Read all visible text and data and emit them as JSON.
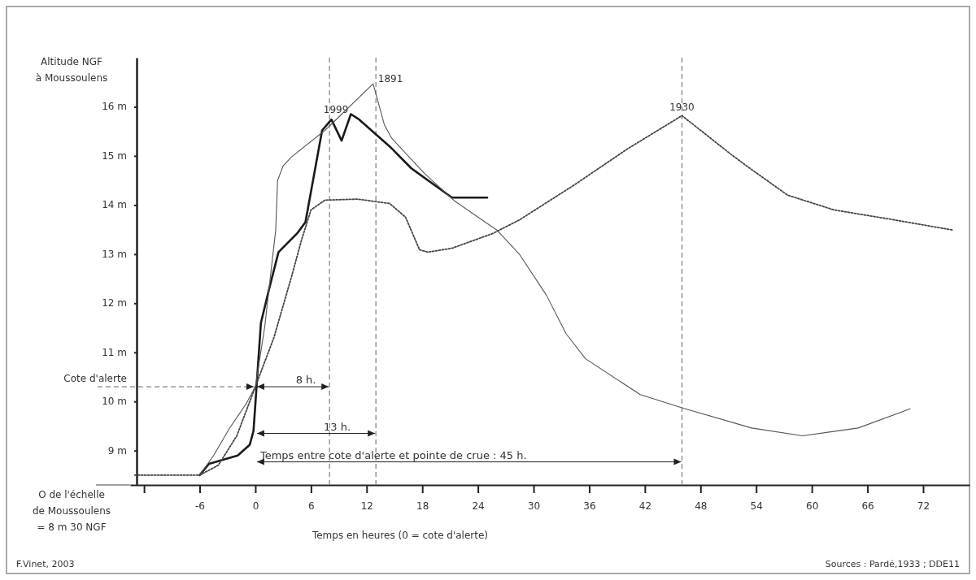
{
  "chart_data": {
    "type": "line",
    "xlabel": "Temps en heures (0 = cote d'alerte)",
    "ylabel": "Altitude NGF à Moussoulens",
    "xlim": [
      -13.5,
      77
    ],
    "xticks": [
      {
        "value": -12,
        "label": null
      },
      -6,
      0,
      6,
      12,
      18,
      24,
      30,
      36,
      42,
      48,
      54,
      60,
      66,
      72
    ],
    "ylim": [
      8.3,
      17
    ],
    "yticks": [
      {
        "value": 9,
        "label": "9 m"
      },
      {
        "value": 10,
        "label": "10 m"
      },
      {
        "value": 11,
        "label": "11 m"
      },
      {
        "value": 12,
        "label": "12 m"
      },
      {
        "value": 13,
        "label": "13 m"
      },
      {
        "value": 14,
        "label": "14 m"
      },
      {
        "value": 15,
        "label": "15 m"
      },
      {
        "value": 16,
        "label": "16 m"
      }
    ],
    "grid": false,
    "legend": false,
    "marker": "none",
    "series": [
      {
        "name": "1999",
        "color": "#1a1a1a",
        "x": [
          -6,
          -5,
          -1.9,
          -0.6,
          -0.2,
          0,
          0.1,
          0.6,
          1.6,
          2.5,
          4.5,
          5.4,
          7.2,
          8.2,
          9.3,
          10.3,
          11.2,
          14.5,
          16.8,
          21.2,
          25
        ],
        "values": [
          8.5,
          8.73,
          8.9,
          9.12,
          9.4,
          9.94,
          10.22,
          11.6,
          12.38,
          13.04,
          13.42,
          13.65,
          15.52,
          15.74,
          15.31,
          15.85,
          15.74,
          15.19,
          14.75,
          14.15,
          14.15
        ]
      },
      {
        "name": "1891",
        "color": "#555555",
        "x": [
          -6,
          -4.5,
          -2.8,
          -1,
          0,
          1,
          1.6,
          2.2,
          2.4,
          3,
          3.9,
          7.5,
          12.7,
          13.9,
          14.7,
          18.2,
          21.5,
          26.1,
          28.5,
          31.4,
          33.5,
          35.6,
          41.5,
          46.2,
          53.5,
          59,
          65,
          70.6
        ],
        "values": [
          8.5,
          8.9,
          9.45,
          9.95,
          10.3,
          11.5,
          12.5,
          13.5,
          14.5,
          14.8,
          14.98,
          15.52,
          16.47,
          15.64,
          15.36,
          14.65,
          14.08,
          13.48,
          12.99,
          12.16,
          11.38,
          10.87,
          10.14,
          9.86,
          9.46,
          9.3,
          9.46,
          9.85
        ]
      },
      {
        "name": "1930",
        "color": "#444444",
        "line_style": "dotted",
        "x": [
          -13,
          -6,
          -4,
          -2,
          0,
          2,
          3.9,
          5,
          6,
          7.5,
          11,
          14.5,
          16.2,
          17.7,
          18.6,
          21.2,
          25.6,
          28.5,
          34.4,
          40.1,
          46,
          51.3,
          53.3,
          57.4,
          62.4,
          68.8,
          75.2
        ],
        "values": [
          8.5,
          8.5,
          8.7,
          9.3,
          10.3,
          11.3,
          12.54,
          13.3,
          13.9,
          14.1,
          14.12,
          14.03,
          13.75,
          13.09,
          13.04,
          13.12,
          13.42,
          13.7,
          14.41,
          15.14,
          15.82,
          15.03,
          14.75,
          14.2,
          13.9,
          13.7,
          13.49
        ]
      }
    ],
    "ref_lines": [
      {
        "axis": "x",
        "value": 8,
        "line_style": "dashed"
      },
      {
        "axis": "x",
        "value": 13,
        "line_style": "dashed"
      },
      {
        "axis": "x",
        "value": 46,
        "line_style": "dashed"
      }
    ],
    "annotations": [
      {
        "text": "Cote d'alerte",
        "x": 0,
        "y": 10.3
      },
      {
        "text": "8 h.",
        "x": 8,
        "y": 10.3
      },
      {
        "text": "13 h.",
        "x": 13,
        "y": 9.35
      },
      {
        "text": "Temps entre cote d'alerte et pointe de crue : 45 h.",
        "x": 46,
        "y": 8.77
      },
      "O de l'échelle de Moussoulens = 8 m 30 NGF",
      "F.Vinet, 2003",
      "Sources : Pardé,1933 ; DDE11"
    ]
  }
}
